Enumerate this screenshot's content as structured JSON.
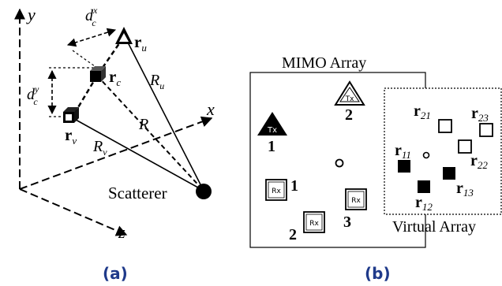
{
  "panel_a": {
    "axes": {
      "y": "y",
      "x": "x",
      "z": "z"
    },
    "labels": {
      "dx_main": "d",
      "dx_sup": "x",
      "dx_sub": "c",
      "dy_main": "d",
      "dy_sup": "y",
      "dy_sub": "c",
      "ru_main": "r",
      "ru_sub": "u",
      "rc_main": "r",
      "rc_sub": "c",
      "rv_main": "r",
      "rv_sub": "v",
      "Ru_main": "R",
      "Ru_sub": "u",
      "Rc": "R",
      "Rv_main": "R",
      "Rv_sub": "v",
      "scatterer": "Scatterer"
    },
    "caption": "(a)"
  },
  "panel_b": {
    "mimo_title": "MIMO Array",
    "virtual_title": "Virtual Array",
    "tx_label": "Tx",
    "rx_label": "Rx",
    "tx_numbers": [
      "1",
      "2"
    ],
    "rx_numbers": [
      "1",
      "2",
      "3"
    ],
    "virtual_points": [
      {
        "main": "r",
        "sub": "21"
      },
      {
        "main": "r",
        "sub": "23"
      },
      {
        "main": "r",
        "sub": "22"
      },
      {
        "main": "r",
        "sub": "11"
      },
      {
        "main": "r",
        "sub": "12"
      },
      {
        "main": "r",
        "sub": "13"
      }
    ],
    "caption": "(b)"
  },
  "colors": {
    "caption": "#1f3a8a",
    "ink": "#000000"
  }
}
